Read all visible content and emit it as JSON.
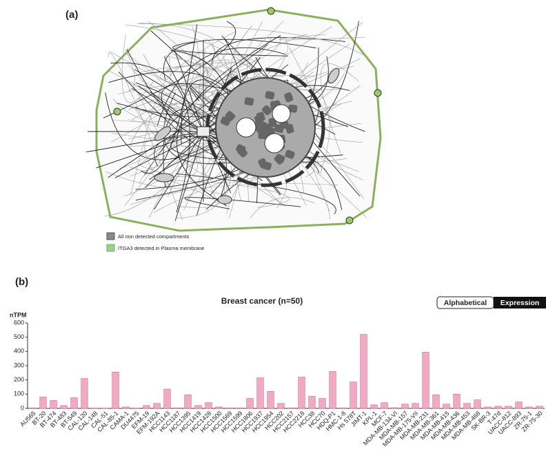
{
  "figure": {
    "panel_a_label": "(a)",
    "panel_b_label": "(b)",
    "legend": [
      "All non detected compartments",
      "ITGA3 detected in Plasma membrane"
    ],
    "buttons": [
      "Alphabetical",
      "Expression"
    ]
  },
  "chart_data": {
    "type": "bar",
    "title": "Breast cancer (n=50)",
    "y_label": "nTPM",
    "categories": [
      "AU565",
      "BT-20",
      "BT-474",
      "BT-483",
      "BT-549",
      "CAL-120",
      "CAL-148",
      "CAL-51",
      "CAL-85-1",
      "CAMA-1",
      "DU4475",
      "EFM-19",
      "EFM-192A",
      "HCC1143",
      "HCC1187",
      "HCC1395",
      "HCC1419",
      "HCC1428",
      "HCC1500",
      "HCC1569",
      "HCC1599",
      "HCC1806",
      "HCC1937",
      "HCC1954",
      "HCC202",
      "HCC2157",
      "HCC2218",
      "HCC38",
      "HCC70",
      "HDQ-P1",
      "HMC-1-8",
      "Hs 578T",
      "JIMT-1",
      "KPL-1",
      "MCF-7",
      "MDA-MB-134-VI",
      "MDA-MB-157",
      "MDA-MB-175-VII",
      "MDA-MB-231",
      "MDA-MB-361",
      "MDA-MB-415",
      "MDA-MB-436",
      "MDA-MB-453",
      "MDA-MB-468",
      "SK-BR-3",
      "T-47d",
      "UACC-812",
      "UACC-893",
      "ZR-75-1",
      "ZR-75-30"
    ],
    "values": [
      3,
      80,
      55,
      20,
      75,
      210,
      2,
      2,
      255,
      10,
      2,
      20,
      35,
      135,
      3,
      95,
      20,
      40,
      10,
      3,
      3,
      70,
      215,
      120,
      35,
      3,
      220,
      85,
      70,
      260,
      3,
      185,
      520,
      25,
      40,
      5,
      30,
      35,
      395,
      95,
      30,
      100,
      35,
      60,
      10,
      15,
      15,
      45,
      10,
      15
    ],
    "color": "#f2aac4",
    "ylim": [
      0,
      600
    ],
    "yticks": [
      0,
      100,
      200,
      300,
      400,
      500,
      600
    ]
  }
}
